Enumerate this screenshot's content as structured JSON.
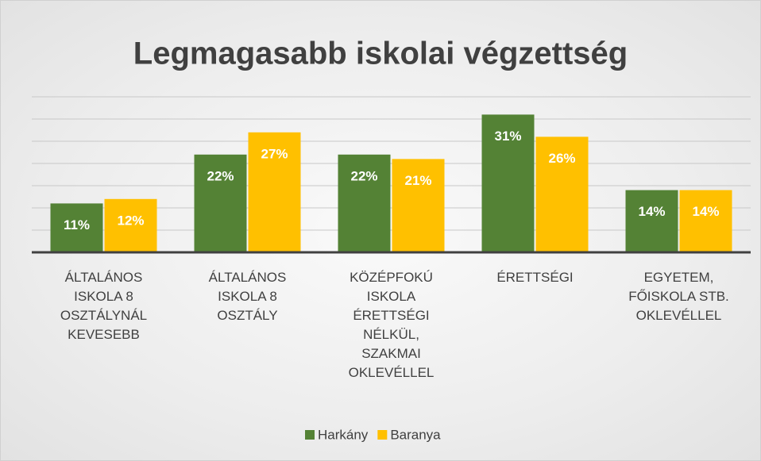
{
  "chart_data": {
    "type": "bar",
    "title": "Legmagasabb iskolai végzettség",
    "categories": [
      "ÁLTALÁNOS ISKOLA 8 OSZTÁLYNÁL KEVESEBB",
      "ÁLTALÁNOS ISKOLA 8 OSZTÁLY",
      "KÖZÉPFOKÚ ISKOLA ÉRETTSÉGI NÉLKÜL, SZAKMAI OKLEVÉLLEL",
      "ÉRETTSÉGI",
      "EGYETEM, FŐISKOLA STB. OKLEVÉLLEL"
    ],
    "series": [
      {
        "name": "Harkány",
        "color": "#548235",
        "values": [
          11,
          22,
          22,
          31,
          14
        ],
        "value_labels": [
          "11%",
          "22%",
          "22%",
          "31%",
          "14%"
        ]
      },
      {
        "name": "Baranya",
        "color": "#ffc000",
        "values": [
          12,
          27,
          21,
          26,
          14
        ],
        "value_labels": [
          "12%",
          "27%",
          "21%",
          "26%",
          "14%"
        ]
      }
    ],
    "ylim": [
      0,
      35
    ],
    "yticks": [
      0,
      5,
      10,
      15,
      20,
      25,
      30,
      35
    ],
    "grid": true,
    "legend": "bottom"
  }
}
